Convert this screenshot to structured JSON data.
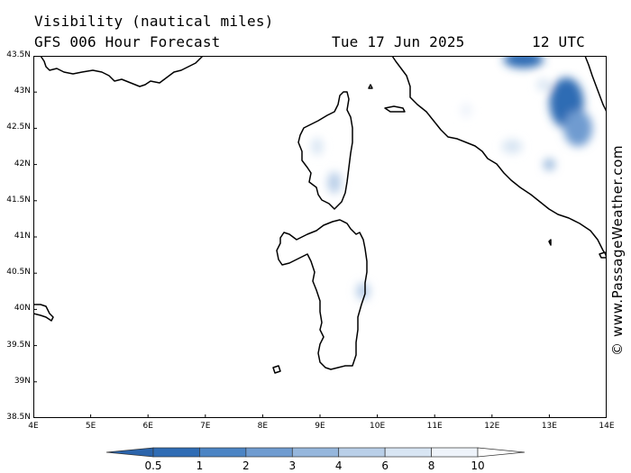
{
  "header": {
    "title_line1": "Visibility (nautical miles)",
    "title_line2": "GFS 006 Hour Forecast",
    "date": "Tue 17 Jun 2025",
    "time": "12 UTC"
  },
  "watermark": "© www.PassageWeather.com",
  "map": {
    "lon_range": [
      4,
      14
    ],
    "lat_range": [
      38.5,
      43.5
    ],
    "lat_labels": [
      "43.5N",
      "43N",
      "42.5N",
      "42N",
      "41.5N",
      "41N",
      "40.5N",
      "40N",
      "39.5N",
      "39N",
      "38.5N"
    ],
    "lon_labels": [
      "4E",
      "5E",
      "6E",
      "7E",
      "8E",
      "9E",
      "10E",
      "11E",
      "12E",
      "13E",
      "14E"
    ],
    "coast_color": "#000000",
    "visibility_patches": [
      {
        "lon": 12.55,
        "lat": 43.45,
        "rx": 0.35,
        "ry": 0.12,
        "vis": 0.5
      },
      {
        "lon": 13.3,
        "lat": 42.85,
        "rx": 0.3,
        "ry": 0.35,
        "vis": 0.5
      },
      {
        "lon": 13.5,
        "lat": 42.5,
        "rx": 0.25,
        "ry": 0.25,
        "vis": 2
      },
      {
        "lon": 13.0,
        "lat": 42.0,
        "rx": 0.1,
        "ry": 0.08,
        "vis": 3
      },
      {
        "lon": 12.35,
        "lat": 42.25,
        "rx": 0.18,
        "ry": 0.1,
        "vis": 6
      },
      {
        "lon": 11.55,
        "lat": 42.75,
        "rx": 0.1,
        "ry": 0.1,
        "vis": 8
      },
      {
        "lon": 8.95,
        "lat": 42.25,
        "rx": 0.1,
        "ry": 0.12,
        "vis": 6
      },
      {
        "lon": 9.25,
        "lat": 41.75,
        "rx": 0.12,
        "ry": 0.15,
        "vis": 4
      },
      {
        "lon": 9.75,
        "lat": 40.25,
        "rx": 0.12,
        "ry": 0.12,
        "vis": 4
      },
      {
        "lon": 12.9,
        "lat": 43.1,
        "rx": 0.12,
        "ry": 0.08,
        "vis": 6
      }
    ]
  },
  "colorbar": {
    "labels": [
      "0.5",
      "1",
      "2",
      "3",
      "4",
      "6",
      "8",
      "10"
    ],
    "colors": [
      "#2f6cb4",
      "#4b84c4",
      "#6f9bd0",
      "#95b6dc",
      "#b9cfe8",
      "#d8e5f3",
      "#eef3fa",
      "#ffffff"
    ]
  }
}
